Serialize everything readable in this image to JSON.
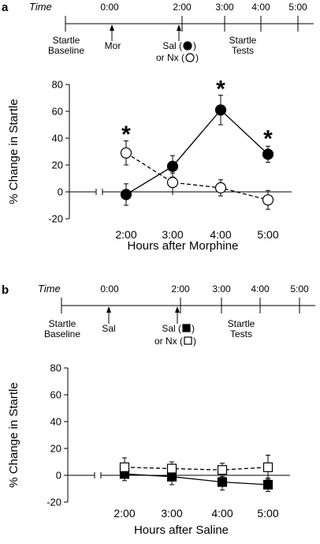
{
  "panel_a": {
    "label": "a",
    "timeline": {
      "time_word": "Time",
      "ticks": [
        "0:00",
        "2:00",
        "3:00",
        "4:00",
        "5:00"
      ],
      "baseline_lines": [
        "Startle",
        "Baseline"
      ],
      "injection1": "Mor",
      "injection2_lines": [
        "Sal (",
        ")",
        "or Nx (",
        ")"
      ],
      "tests_lines": [
        "Startle",
        "Tests"
      ]
    }
  },
  "panel_b": {
    "label": "b",
    "timeline": {
      "time_word": "Time",
      "ticks": [
        "0:00",
        "2:00",
        "3:00",
        "4:00",
        "5:00"
      ],
      "baseline_lines": [
        "Startle",
        "Baseline"
      ],
      "injection1": "Sal",
      "injection2_lines": [
        "Sal (",
        ")",
        "or Nx (",
        ")"
      ],
      "tests_lines": [
        "Startle",
        "Tests"
      ]
    }
  },
  "chart_data": [
    {
      "type": "line",
      "panel": "a",
      "title": "",
      "xlabel": "Hours after Morphine",
      "ylabel": "% Change in Startle",
      "categories": [
        "2:00",
        "3:00",
        "4:00",
        "5:00"
      ],
      "ylim": [
        -20,
        80
      ],
      "yticks": [
        -20,
        0,
        20,
        40,
        60,
        80
      ],
      "series": [
        {
          "marker": "filled-circle",
          "line": "solid",
          "values": [
            -2,
            19,
            61,
            28
          ],
          "errors": [
            8,
            8,
            11,
            6
          ]
        },
        {
          "marker": "open-circle",
          "line": "dashed",
          "values": [
            29,
            7,
            3,
            -6
          ],
          "errors": [
            9,
            7,
            6,
            7
          ]
        }
      ],
      "annotations": [
        {
          "text": "*",
          "category": "2:00",
          "y": 44
        },
        {
          "text": "*",
          "category": "4:00",
          "y": 78
        },
        {
          "text": "*",
          "category": "5:00",
          "y": 41
        }
      ]
    },
    {
      "type": "line",
      "panel": "b",
      "title": "",
      "xlabel": "Hours after Saline",
      "ylabel": "% Change in Startle",
      "categories": [
        "2:00",
        "3:00",
        "4:00",
        "5:00"
      ],
      "ylim": [
        -20,
        80
      ],
      "yticks": [
        -20,
        0,
        20,
        40,
        60,
        80
      ],
      "series": [
        {
          "marker": "filled-square",
          "line": "solid",
          "values": [
            1,
            -1,
            -5,
            -7
          ],
          "errors": [
            5,
            6,
            6,
            5
          ]
        },
        {
          "marker": "open-square",
          "line": "dashed",
          "values": [
            6,
            5,
            4,
            6
          ],
          "errors": [
            7,
            5,
            5,
            9
          ]
        }
      ],
      "annotations": []
    }
  ]
}
